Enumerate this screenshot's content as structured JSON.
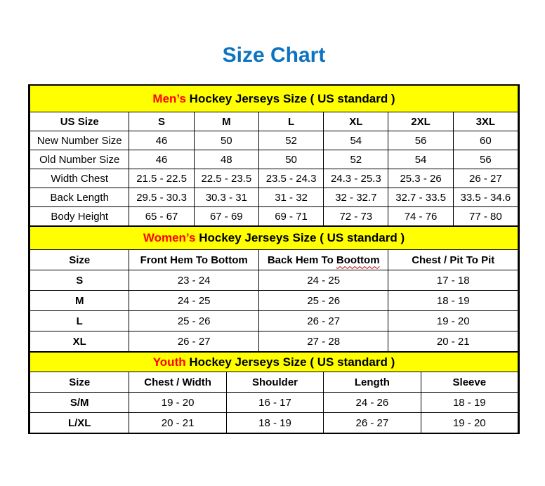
{
  "page": {
    "title": "Size Chart"
  },
  "colors": {
    "title_blue": "#0d73c0",
    "band_yellow": "#ffff00",
    "accent_red": "#ff0000",
    "border_black": "#000000"
  },
  "tables": [
    {
      "id": "men",
      "band": {
        "highlight": "Men’s",
        "rest": " Hockey Jerseys Size ( US standard )"
      },
      "headers": [
        "US Size",
        "S",
        "M",
        "L",
        "XL",
        "2XL",
        "3XL"
      ],
      "rows": [
        [
          "New Number Size",
          "46",
          "50",
          "52",
          "54",
          "56",
          "60"
        ],
        [
          "Old Number Size",
          "46",
          "48",
          "50",
          "52",
          "54",
          "56"
        ],
        [
          "Width Chest",
          "21.5 - 22.5",
          "22.5 - 23.5",
          "23.5 - 24.3",
          "24.3 - 25.3",
          "25.3 - 26",
          "26 - 27"
        ],
        [
          "Back Length",
          "29.5 - 30.3",
          "30.3 - 31",
          "31 - 32",
          "32 - 32.7",
          "32.7 - 33.5",
          "33.5 - 34.6"
        ],
        [
          "Body Height",
          "65 - 67",
          "67 - 69",
          "69 - 71",
          "72 - 73",
          "74 - 76",
          "77 - 80"
        ]
      ]
    },
    {
      "id": "women",
      "band": {
        "highlight": "Women’s",
        "rest": " Hockey Jerseys Size ( US standard )"
      },
      "headers": [
        "Size",
        "Front Hem To Bottom",
        "Back Hem To Boottom",
        "Chest / Pit To Pit"
      ],
      "squiggle_word": "Boottom",
      "rows": [
        [
          "S",
          "23 - 24",
          "24 - 25",
          "17 - 18"
        ],
        [
          "M",
          "24 - 25",
          "25 - 26",
          "18 - 19"
        ],
        [
          "L",
          "25 - 26",
          "26 - 27",
          "19 - 20"
        ],
        [
          "XL",
          "26 - 27",
          "27 - 28",
          "20 - 21"
        ]
      ]
    },
    {
      "id": "youth",
      "band": {
        "highlight": "Youth",
        "rest": " Hockey Jerseys Size ( US standard )"
      },
      "headers": [
        "Size",
        "Chest / Width",
        "Shoulder",
        "Length",
        "Sleeve"
      ],
      "rows": [
        [
          "S/M",
          "19 - 20",
          "16 - 17",
          "24 - 26",
          "18 - 19"
        ],
        [
          "L/XL",
          "20 - 21",
          "18 - 19",
          "26 - 27",
          "19 - 20"
        ]
      ]
    }
  ]
}
